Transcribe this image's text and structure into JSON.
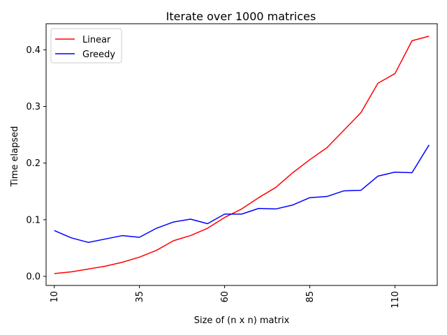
{
  "chart_data": {
    "type": "line",
    "title": "Iterate over 1000 matrices",
    "xlabel": "Size of (n x n) matrix",
    "ylabel": "Time elapsed",
    "x": [
      10,
      15,
      20,
      25,
      30,
      35,
      40,
      45,
      50,
      55,
      60,
      65,
      70,
      75,
      80,
      85,
      90,
      95,
      100,
      105,
      110,
      115,
      120
    ],
    "xlim": [
      7.6,
      122.4
    ],
    "ylim": [
      -0.016,
      0.446
    ],
    "xticks": [
      10,
      35,
      60,
      85,
      110
    ],
    "xtick_labels": [
      "10",
      "35",
      "60",
      "85",
      "110"
    ],
    "yticks": [
      0.0,
      0.1,
      0.2,
      0.3,
      0.4
    ],
    "ytick_labels": [
      "0.0",
      "0.1",
      "0.2",
      "0.3",
      "0.4"
    ],
    "grid": false,
    "legend_position": "top-left",
    "series": [
      {
        "name": "Linear",
        "color": "#ff0000",
        "values": [
          0.005,
          0.008,
          0.013,
          0.018,
          0.025,
          0.034,
          0.046,
          0.063,
          0.072,
          0.085,
          0.104,
          0.119,
          0.139,
          0.157,
          0.183,
          0.206,
          0.227,
          0.258,
          0.289,
          0.341,
          0.358,
          0.416,
          0.424
        ]
      },
      {
        "name": "Greedy",
        "color": "#0000ff",
        "values": [
          0.081,
          0.068,
          0.06,
          0.066,
          0.072,
          0.069,
          0.085,
          0.096,
          0.101,
          0.093,
          0.11,
          0.11,
          0.12,
          0.119,
          0.126,
          0.139,
          0.141,
          0.151,
          0.152,
          0.177,
          0.184,
          0.183,
          0.232
        ]
      }
    ]
  }
}
